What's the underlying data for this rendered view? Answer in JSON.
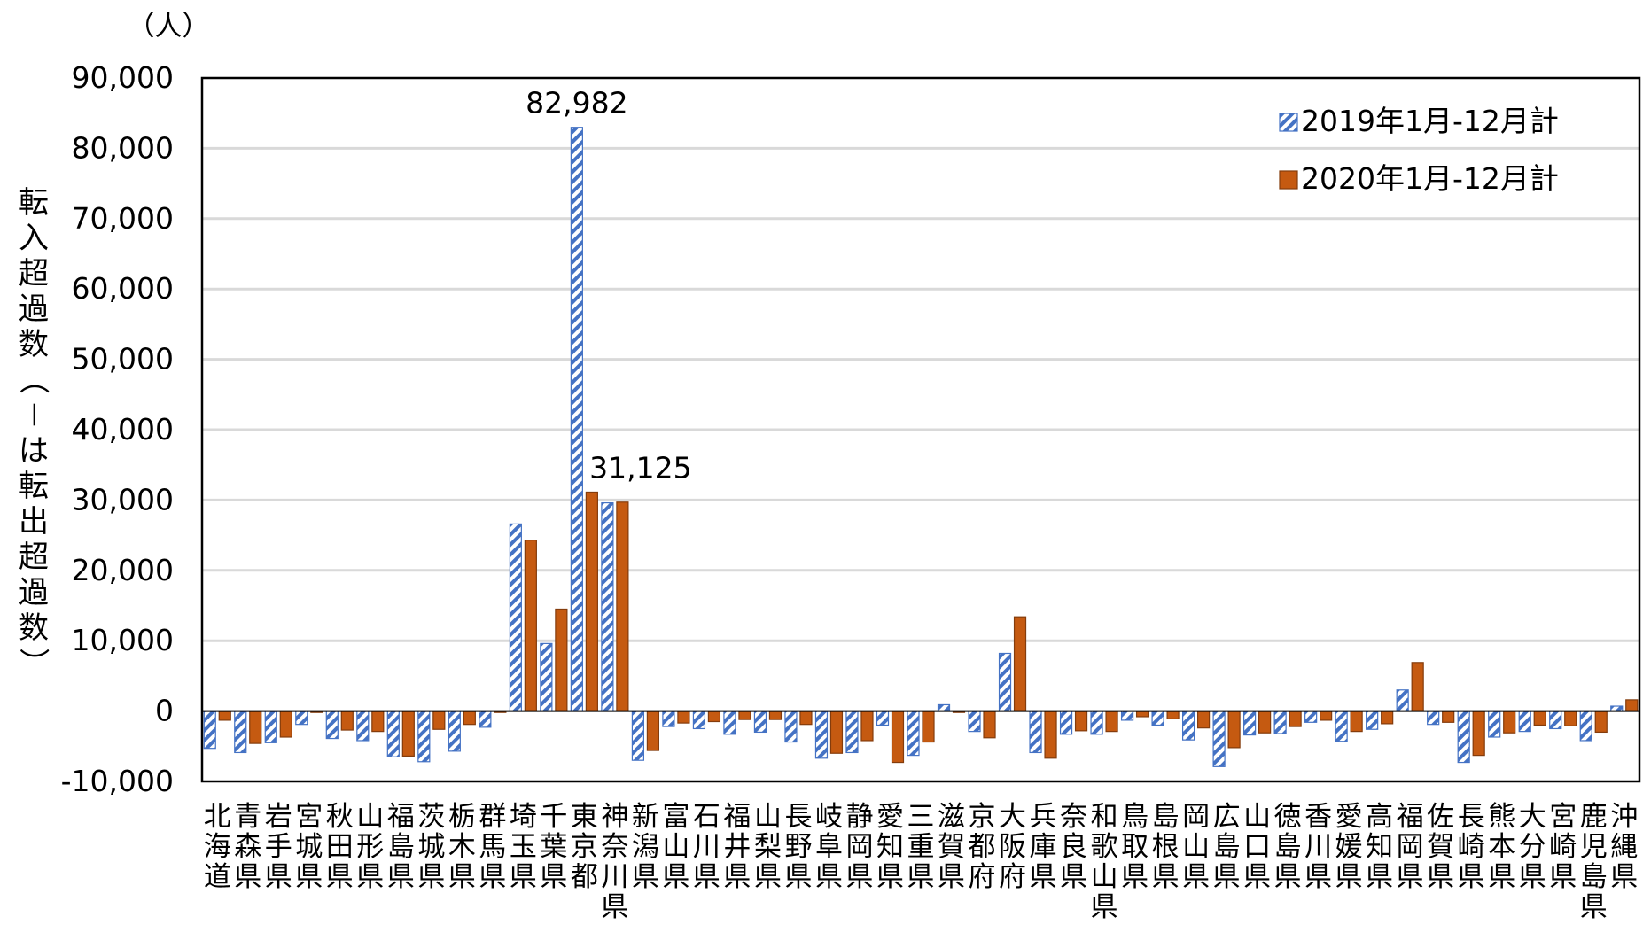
{
  "chart_data": {
    "type": "bar",
    "unit_label": "（人）",
    "ylabel": "転入超過数（－は転出超過数）",
    "ylim": [
      -10000,
      90000
    ],
    "ytick_step": 10000,
    "yticks": [
      "90,000",
      "80,000",
      "70,000",
      "60,000",
      "50,000",
      "40,000",
      "30,000",
      "20,000",
      "10,000",
      "0",
      "-10,000"
    ],
    "grid": true,
    "legend_position": "top-right",
    "categories": [
      "北海道",
      "青森県",
      "岩手県",
      "宮城県",
      "秋田県",
      "山形県",
      "福島県",
      "茨城県",
      "栃木県",
      "群馬県",
      "埼玉県",
      "千葉県",
      "東京都",
      "神奈川県",
      "新潟県",
      "富山県",
      "石川県",
      "福井県",
      "山梨県",
      "長野県",
      "岐阜県",
      "静岡県",
      "愛知県",
      "三重県",
      "滋賀県",
      "京都府",
      "大阪府",
      "兵庫県",
      "奈良県",
      "和歌山県",
      "鳥取県",
      "島根県",
      "岡山県",
      "広島県",
      "山口県",
      "徳島県",
      "香川県",
      "愛媛県",
      "高知県",
      "福岡県",
      "佐賀県",
      "長崎県",
      "熊本県",
      "大分県",
      "宮崎県",
      "鹿児島県",
      "沖縄県"
    ],
    "series": [
      {
        "name": "2019年1月-12月計",
        "color": "#4472c4",
        "pattern": "hatched",
        "values": [
          -5300,
          -5900,
          -4500,
          -1900,
          -3900,
          -4200,
          -6500,
          -7200,
          -5700,
          -2300,
          26600,
          9600,
          82982,
          29600,
          -7000,
          -2200,
          -2500,
          -3300,
          -3000,
          -4400,
          -6700,
          -5900,
          -2000,
          -6300,
          900,
          -2900,
          8200,
          -5900,
          -3300,
          -3300,
          -1300,
          -2000,
          -4100,
          -7900,
          -3400,
          -3200,
          -1600,
          -4300,
          -2600,
          3000,
          -1900,
          -7300,
          -3700,
          -2900,
          -2500,
          -4200,
          700
        ]
      },
      {
        "name": "2020年1月-12月計",
        "color": "#c55a11",
        "pattern": "solid",
        "values": [
          -1300,
          -4600,
          -3700,
          -200,
          -2700,
          -2900,
          -6400,
          -2600,
          -1900,
          -200,
          24300,
          14500,
          31125,
          29700,
          -5600,
          -1700,
          -1500,
          -1200,
          -1200,
          -1900,
          -6000,
          -4200,
          -7300,
          -4400,
          -200,
          -3800,
          13400,
          -6700,
          -2800,
          -2900,
          -800,
          -1100,
          -2400,
          -5200,
          -3100,
          -2200,
          -1300,
          -2900,
          -1800,
          6900,
          -1600,
          -6300,
          -3100,
          -2000,
          -2100,
          -3000,
          1600
        ]
      }
    ],
    "data_labels": [
      {
        "series": 0,
        "category": "東京都",
        "text": "82,982"
      },
      {
        "series": 1,
        "category": "東京都",
        "text": "31,125"
      }
    ]
  }
}
